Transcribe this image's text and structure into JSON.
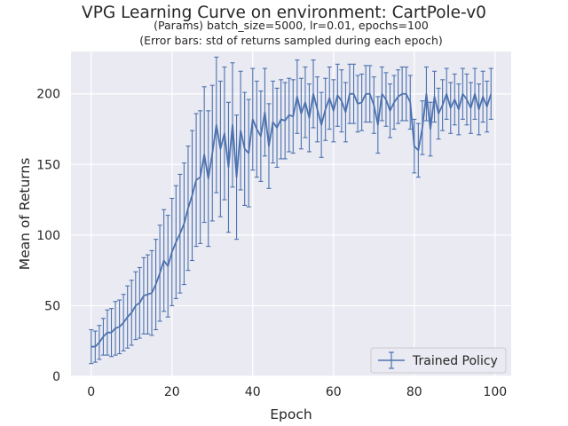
{
  "chart_data": {
    "type": "line",
    "title": "VPG Learning Curve on environment: CartPole-v0",
    "subtitle_lines": [
      "(Params) batch_size=5000, lr=0.01, epochs=100",
      "(Error bars: std of returns sampled during each epoch)"
    ],
    "xlabel": "Epoch",
    "ylabel": "Mean of Returns",
    "xlim": [
      -5,
      104
    ],
    "ylim": [
      0,
      230
    ],
    "xticks": [
      0,
      20,
      40,
      60,
      80,
      100
    ],
    "yticks": [
      0,
      50,
      100,
      150,
      200
    ],
    "grid": true,
    "legend": {
      "position": "bottom-right",
      "entries": [
        "Trained Policy"
      ]
    },
    "colors": {
      "line": "#4c72b0",
      "background": "#eaeaf2",
      "grid": "#ffffff"
    },
    "series": [
      {
        "name": "Trained Policy",
        "x": [
          0,
          1,
          2,
          3,
          4,
          5,
          6,
          7,
          8,
          9,
          10,
          11,
          12,
          13,
          14,
          15,
          16,
          17,
          18,
          19,
          20,
          21,
          22,
          23,
          24,
          25,
          26,
          27,
          28,
          29,
          30,
          31,
          32,
          33,
          34,
          35,
          36,
          37,
          38,
          39,
          40,
          41,
          42,
          43,
          44,
          45,
          46,
          47,
          48,
          49,
          50,
          51,
          52,
          53,
          54,
          55,
          56,
          57,
          58,
          59,
          60,
          61,
          62,
          63,
          64,
          65,
          66,
          67,
          68,
          69,
          70,
          71,
          72,
          73,
          74,
          75,
          76,
          77,
          78,
          79,
          80,
          81,
          82,
          83,
          84,
          85,
          86,
          87,
          88,
          89,
          90,
          91,
          92,
          93,
          94,
          95,
          96,
          97,
          98,
          99
        ],
        "y": [
          21,
          21,
          24,
          28,
          31,
          31,
          34,
          35,
          38,
          42,
          45,
          50,
          52,
          57,
          58,
          59,
          65,
          73,
          82,
          78,
          88,
          95,
          101,
          108,
          119,
          128,
          139,
          141,
          157,
          140,
          158,
          178,
          161,
          172,
          148,
          178,
          141,
          174,
          161,
          158,
          182,
          175,
          170,
          187,
          163,
          180,
          176,
          182,
          181,
          185,
          184,
          198,
          186,
          194,
          183,
          200,
          189,
          178,
          189,
          197,
          188,
          199,
          195,
          187,
          200,
          200,
          193,
          194,
          200,
          200,
          192,
          178,
          200,
          196,
          188,
          194,
          198,
          200,
          200,
          194,
          163,
          160,
          176,
          200,
          175,
          198,
          186,
          192,
          200,
          190,
          196,
          189,
          200,
          196,
          190,
          200,
          189,
          198,
          191,
          200
        ],
        "error": [
          12,
          11,
          12,
          13,
          16,
          17,
          19,
          19,
          20,
          22,
          23,
          24,
          25,
          27,
          28,
          30,
          32,
          34,
          36,
          36,
          38,
          40,
          42,
          43,
          44,
          46,
          47,
          47,
          48,
          48,
          48,
          48,
          48,
          47,
          46,
          44,
          44,
          42,
          40,
          38,
          36,
          34,
          32,
          31,
          30,
          29,
          28,
          28,
          27,
          26,
          26,
          26,
          25,
          25,
          24,
          24,
          23,
          23,
          22,
          22,
          22,
          22,
          22,
          21,
          21,
          21,
          20,
          20,
          20,
          20,
          20,
          20,
          19,
          19,
          19,
          19,
          19,
          19,
          19,
          19,
          19,
          19,
          19,
          19,
          19,
          18,
          18,
          18,
          18,
          18,
          18,
          18,
          18,
          18,
          18,
          18,
          18,
          18,
          18,
          18
        ]
      }
    ]
  }
}
